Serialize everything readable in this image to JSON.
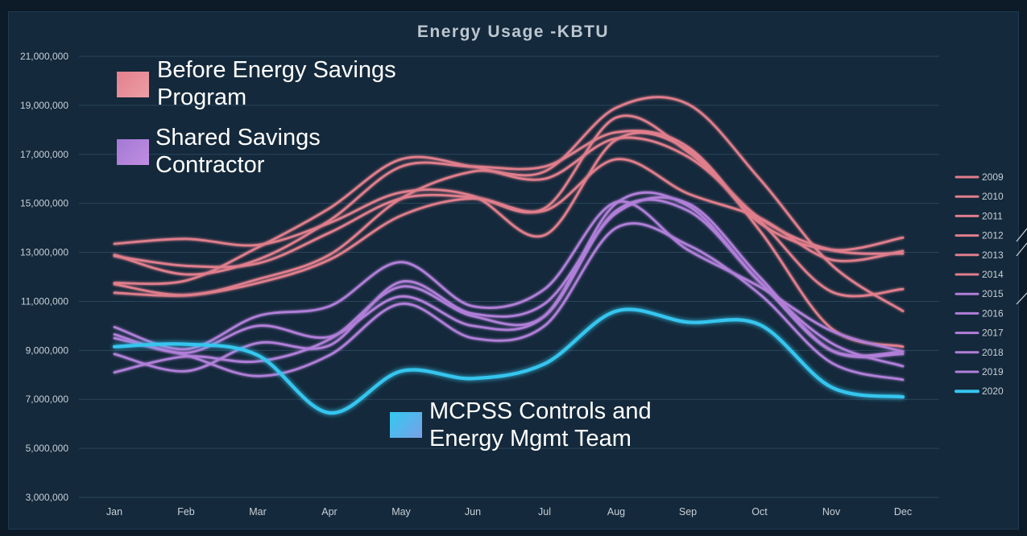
{
  "chart_data": {
    "type": "line",
    "title": "Energy Usage -KBTU",
    "xlabel": "",
    "ylabel": "",
    "categories": [
      "Jan",
      "Feb",
      "Mar",
      "Apr",
      "May",
      "Jun",
      "Jul",
      "Aug",
      "Sep",
      "Oct",
      "Nov",
      "Dec"
    ],
    "y_ticks": [
      "21,000,000",
      "19,000,000",
      "17,000,000",
      "15,000,000",
      "13,000,000",
      "11,000,000",
      "9,000,000",
      "7,000,000",
      "5,000,000",
      "3,000,000"
    ],
    "ylim": [
      3000000,
      21000000
    ],
    "grid": true,
    "legend_position": "right",
    "series": [
      {
        "name": "2009",
        "color": "#e07e8c",
        "values": [
          12850000,
          12450000,
          12550000,
          13800000,
          15200000,
          15250000,
          14800000,
          18500000,
          17100000,
          14400000,
          13100000,
          12950000
        ]
      },
      {
        "name": "2010",
        "color": "#e07e8c",
        "values": [
          13350000,
          13550000,
          13300000,
          14200000,
          15450000,
          15300000,
          13700000,
          17600000,
          17200000,
          14200000,
          13100000,
          13600000
        ]
      },
      {
        "name": "2011",
        "color": "#e07e8c",
        "values": [
          11700000,
          11250000,
          11900000,
          12900000,
          15200000,
          16300000,
          16300000,
          18900000,
          19050000,
          16000000,
          12500000,
          10600000
        ]
      },
      {
        "name": "2012",
        "color": "#e07e8c",
        "values": [
          11750000,
          11850000,
          13200000,
          14800000,
          16800000,
          16500000,
          16000000,
          17650000,
          16900000,
          14300000,
          11400000,
          11500000
        ]
      },
      {
        "name": "2013",
        "color": "#e07e8c",
        "values": [
          11350000,
          11250000,
          11750000,
          12700000,
          14500000,
          15200000,
          14700000,
          16800000,
          15400000,
          14400000,
          12700000,
          13050000
        ]
      },
      {
        "name": "2014",
        "color": "#e07e8c",
        "values": [
          12900000,
          12100000,
          12700000,
          14300000,
          16500000,
          16500000,
          16500000,
          17900000,
          17300000,
          13900000,
          9900000,
          9150000
        ]
      },
      {
        "name": "2015",
        "color": "#b07fd8",
        "values": [
          9950000,
          9050000,
          10400000,
          10800000,
          12600000,
          10800000,
          11500000,
          15050000,
          13100000,
          11600000,
          9800000,
          8950000
        ]
      },
      {
        "name": "2016",
        "color": "#b07fd8",
        "values": [
          9650000,
          8900000,
          10000000,
          9550000,
          11200000,
          10000000,
          10400000,
          15000000,
          14900000,
          11800000,
          9300000,
          8350000
        ]
      },
      {
        "name": "2017",
        "color": "#b07fd8",
        "values": [
          8850000,
          8150000,
          9300000,
          9200000,
          11800000,
          10500000,
          10900000,
          14600000,
          15000000,
          12000000,
          9000000,
          8850000
        ]
      },
      {
        "name": "2018",
        "color": "#b07fd8",
        "values": [
          8100000,
          8750000,
          8550000,
          9450000,
          11600000,
          10400000,
          10400000,
          14700000,
          14700000,
          11800000,
          9000000,
          8950000
        ]
      },
      {
        "name": "2019",
        "color": "#b07fd8",
        "values": [
          9500000,
          8800000,
          7950000,
          8800000,
          10900000,
          9500000,
          10000000,
          14000000,
          13300000,
          11300000,
          8500000,
          7800000
        ]
      },
      {
        "name": "2020",
        "color": "#36c6ef",
        "values": [
          9150000,
          9250000,
          8800000,
          6450000,
          8150000,
          7850000,
          8450000,
          10600000,
          10150000,
          10050000,
          7500000,
          7100000
        ]
      }
    ],
    "annotations": [
      {
        "name": "before",
        "text_lines": [
          "Before Energy Savings",
          "Program"
        ],
        "color": "#e0868f"
      },
      {
        "name": "shared",
        "text_lines": [
          "Shared Savings",
          "Contractor"
        ],
        "color": "#b27fd9"
      },
      {
        "name": "mcpss",
        "text_lines": [
          "MCPSS Controls and",
          "Energy Mgmt Team"
        ],
        "color": "#3bc3ee"
      }
    ]
  }
}
